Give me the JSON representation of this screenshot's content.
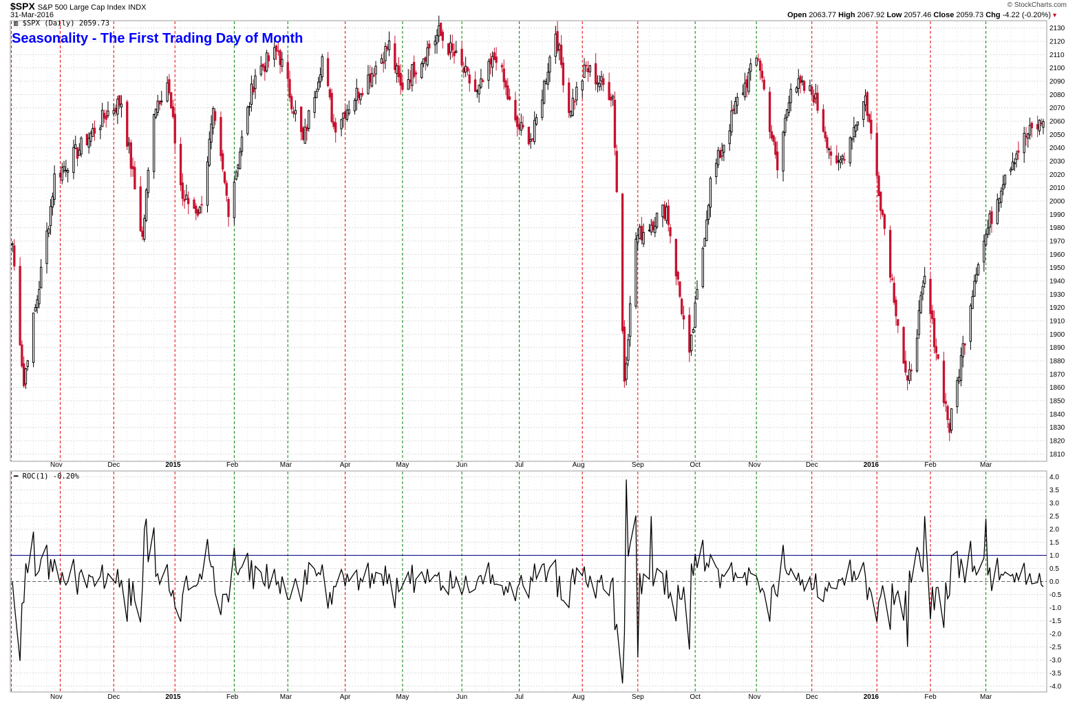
{
  "header": {
    "symbol": "$SPX",
    "description": "S&P 500 Large Cap Index",
    "exchange": "INDX",
    "date": "31-Mar-2016",
    "brand": "© StockCharts.com",
    "open_label": "Open",
    "open": "2063.77",
    "high_label": "High",
    "high": "2067.92",
    "low_label": "Low",
    "low": "2057.46",
    "close_label": "Close",
    "close": "2059.73",
    "chg_label": "Chg",
    "chg": "-4.22 (-0.20%)"
  },
  "price_panel": {
    "title": "Seasonality - The First Trading Day of Month",
    "legend": "$SPX (Daily) 2059.73"
  },
  "roc_panel": {
    "legend": "ROC(1) -0.20%"
  },
  "colors": {
    "up": "#000000",
    "down": "#c8102e",
    "red_line": "#e60000",
    "green_line": "#008000",
    "grid": "#d9d9d9",
    "title": "#0000ff",
    "reference": "#000080"
  },
  "chart_data": [
    {
      "type": "candlestick",
      "title": "Seasonality - The First Trading Day of Month",
      "series_label": "$SPX (Daily) 2059.73",
      "x_range": [
        "2014-10-09",
        "2016-03-31"
      ],
      "ylim": [
        1805,
        2135
      ],
      "y_ticks": [
        1810,
        1820,
        1830,
        1840,
        1850,
        1860,
        1870,
        1880,
        1890,
        1900,
        1910,
        1920,
        1930,
        1940,
        1950,
        1960,
        1970,
        1980,
        1990,
        2000,
        2010,
        2020,
        2030,
        2040,
        2050,
        2060,
        2070,
        2080,
        2090,
        2100,
        2110,
        2120,
        2130
      ],
      "x_tick_labels": [
        {
          "date": "2014-11-01",
          "label": "Nov"
        },
        {
          "date": "2014-12-01",
          "label": "Dec"
        },
        {
          "date": "2015-01-01",
          "label": "2015"
        },
        {
          "date": "2015-02-01",
          "label": "Feb"
        },
        {
          "date": "2015-03-01",
          "label": "Mar"
        },
        {
          "date": "2015-04-01",
          "label": "Apr"
        },
        {
          "date": "2015-05-01",
          "label": "May"
        },
        {
          "date": "2015-06-01",
          "label": "Jun"
        },
        {
          "date": "2015-07-01",
          "label": "Jul"
        },
        {
          "date": "2015-08-01",
          "label": "Aug"
        },
        {
          "date": "2015-09-01",
          "label": "Sep"
        },
        {
          "date": "2015-10-01",
          "label": "Oct"
        },
        {
          "date": "2015-11-01",
          "label": "Nov"
        },
        {
          "date": "2015-12-01",
          "label": "Dec"
        },
        {
          "date": "2016-01-01",
          "label": "2016"
        },
        {
          "date": "2016-02-01",
          "label": "Feb"
        },
        {
          "date": "2016-03-01",
          "label": "Mar"
        }
      ],
      "first_trading_day_markers": [
        {
          "date": "2014-10-01",
          "color": "red"
        },
        {
          "date": "2014-11-03",
          "color": "red"
        },
        {
          "date": "2014-12-01",
          "color": "red"
        },
        {
          "date": "2015-01-02",
          "color": "red"
        },
        {
          "date": "2015-02-02",
          "color": "green"
        },
        {
          "date": "2015-03-02",
          "color": "green"
        },
        {
          "date": "2015-04-01",
          "color": "red"
        },
        {
          "date": "2015-05-01",
          "color": "green"
        },
        {
          "date": "2015-06-01",
          "color": "green"
        },
        {
          "date": "2015-07-01",
          "color": "green"
        },
        {
          "date": "2015-08-03",
          "color": "red"
        },
        {
          "date": "2015-09-01",
          "color": "red"
        },
        {
          "date": "2015-10-01",
          "color": "green"
        },
        {
          "date": "2015-11-02",
          "color": "green"
        },
        {
          "date": "2015-12-01",
          "color": "red"
        },
        {
          "date": "2016-01-04",
          "color": "red"
        },
        {
          "date": "2016-02-01",
          "color": "red"
        },
        {
          "date": "2016-03-01",
          "color": "green"
        }
      ],
      "close_path": [
        [
          "2014-10-09",
          1968
        ],
        [
          "2014-10-15",
          1862
        ],
        [
          "2014-10-17",
          1886
        ],
        [
          "2014-10-22",
          1927
        ],
        [
          "2014-10-28",
          1985
        ],
        [
          "2014-10-31",
          2018
        ],
        [
          "2014-11-13",
          2039
        ],
        [
          "2014-11-28",
          2067
        ],
        [
          "2014-12-05",
          2075
        ],
        [
          "2014-12-16",
          1972
        ],
        [
          "2014-12-22",
          2070
        ],
        [
          "2014-12-29",
          2090
        ],
        [
          "2015-01-06",
          2002
        ],
        [
          "2015-01-15",
          1992
        ],
        [
          "2015-01-22",
          2063
        ],
        [
          "2015-01-30",
          1995
        ],
        [
          "2015-02-13",
          2096
        ],
        [
          "2015-02-25",
          2113
        ],
        [
          "2015-03-10",
          2044
        ],
        [
          "2015-03-20",
          2108
        ],
        [
          "2015-03-26",
          2056
        ],
        [
          "2015-04-14",
          2095
        ],
        [
          "2015-04-24",
          2117
        ],
        [
          "2015-04-30",
          2085
        ],
        [
          "2015-05-20",
          2126
        ],
        [
          "2015-05-29",
          2107
        ],
        [
          "2015-06-09",
          2080
        ],
        [
          "2015-06-19",
          2110
        ],
        [
          "2015-06-29",
          2057
        ],
        [
          "2015-07-08",
          2047
        ],
        [
          "2015-07-20",
          2128
        ],
        [
          "2015-07-27",
          2068
        ],
        [
          "2015-08-05",
          2100
        ],
        [
          "2015-08-19",
          2079
        ],
        [
          "2015-08-25",
          1867
        ],
        [
          "2015-08-31",
          1972
        ],
        [
          "2015-09-16",
          1995
        ],
        [
          "2015-09-28",
          1881
        ],
        [
          "2015-10-09",
          2014
        ],
        [
          "2015-10-23",
          2075
        ],
        [
          "2015-11-03",
          2109
        ],
        [
          "2015-11-13",
          2023
        ],
        [
          "2015-11-20",
          2089
        ],
        [
          "2015-12-02",
          2080
        ],
        [
          "2015-12-14",
          2022
        ],
        [
          "2015-12-29",
          2078
        ],
        [
          "2016-01-07",
          1990
        ],
        [
          "2016-01-20",
          1859
        ],
        [
          "2016-01-29",
          1940
        ],
        [
          "2016-02-11",
          1829
        ],
        [
          "2016-02-25",
          1951
        ],
        [
          "2016-03-11",
          2022
        ],
        [
          "2016-03-22",
          2049
        ],
        [
          "2016-03-31",
          2059.73
        ]
      ]
    },
    {
      "type": "line",
      "series_label": "ROC(1) -0.20%",
      "x_range": [
        "2014-10-09",
        "2016-03-31"
      ],
      "ylim": [
        -4.2,
        4.2
      ],
      "y_ticks": [
        -4.0,
        -3.5,
        -3.0,
        -2.5,
        -2.0,
        -1.5,
        -1.0,
        -0.5,
        0.0,
        0.5,
        1.0,
        1.5,
        2.0,
        2.5,
        3.0,
        3.5,
        4.0
      ],
      "reference_lines": [
        1.0,
        0.0
      ],
      "extremes": [
        {
          "date": "2015-08-24",
          "value": -3.9
        },
        {
          "date": "2015-08-26",
          "value": 3.9
        },
        {
          "date": "2015-09-01",
          "value": -2.9
        },
        {
          "date": "2015-09-08",
          "value": 2.5
        },
        {
          "date": "2015-09-28",
          "value": -2.6
        },
        {
          "date": "2014-12-17",
          "value": 2.0
        },
        {
          "date": "2014-12-18",
          "value": 2.4
        },
        {
          "date": "2016-01-29",
          "value": 2.5
        },
        {
          "date": "2016-01-20",
          "value": -2.5
        },
        {
          "date": "2016-03-01",
          "value": 2.4
        },
        {
          "date": "2016-03-31",
          "value": -0.2
        }
      ]
    }
  ]
}
